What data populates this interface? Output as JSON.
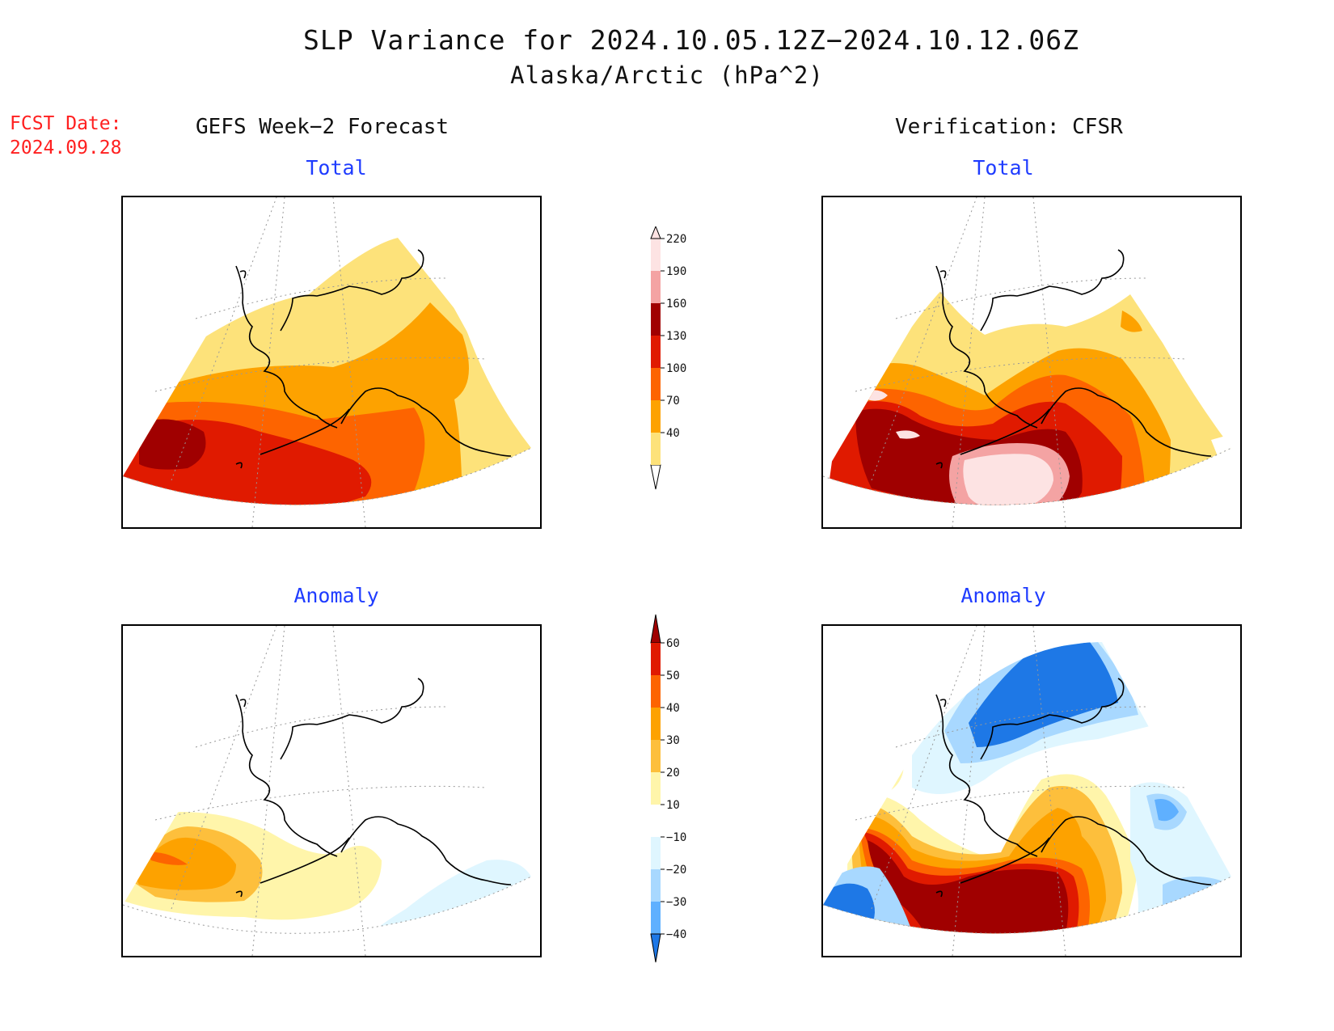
{
  "title": "SLP Variance for 2024.10.05.12Z−2024.10.12.06Z",
  "subtitle": "Alaska/Arctic (hPa^2)",
  "fcst_date_label": "FCST Date:",
  "fcst_date_value": "2024.09.28",
  "left_column_title": "GEFS Week−2 Forecast",
  "right_column_title": "Verification: CFSR",
  "panels": {
    "top_left": {
      "label": "Total"
    },
    "top_right": {
      "label": "Total"
    },
    "bottom_left": {
      "label": "Anomaly"
    },
    "bottom_right": {
      "label": "Anomaly"
    }
  },
  "total_colorbar": {
    "levels": [
      "40",
      "70",
      "100",
      "130",
      "160",
      "190",
      "220"
    ],
    "colors": [
      "#fde27a",
      "#fda200",
      "#fd6400",
      "#e01a00",
      "#a00000",
      "#f4a3a3",
      "#fde3e3"
    ]
  },
  "anomaly_colorbar": {
    "levels": [
      "60",
      "50",
      "40",
      "30",
      "20",
      "10",
      "−10",
      "−20",
      "−30",
      "−40"
    ],
    "colors": [
      "#a00000",
      "#e01a00",
      "#fd6400",
      "#fda200",
      "#fdbf3c",
      "#fff5aa",
      "#ffffff",
      "#dff6ff",
      "#a8d8ff",
      "#5fb0ff",
      "#1e78e6"
    ]
  },
  "map_colors": {
    "boundary": "#000000",
    "grid": "#999999"
  }
}
